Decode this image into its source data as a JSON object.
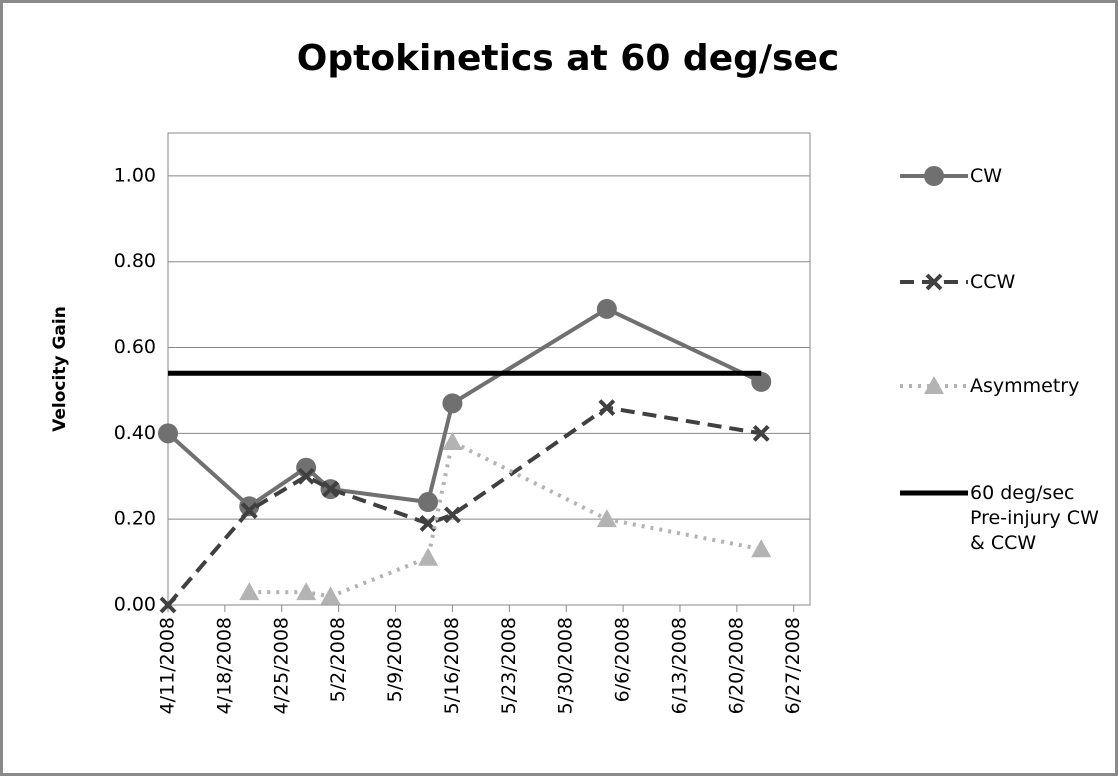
{
  "chart_data": {
    "type": "line",
    "title": "Optokinetics at 60 deg/sec",
    "y_label": "Velocity Gain",
    "x": [
      "4/11/2008",
      "4/21/2008",
      "4/28/2008",
      "5/1/2008",
      "5/13/2008",
      "5/16/2008",
      "6/4/2008",
      "6/23/2008"
    ],
    "series": [
      {
        "name": "CW",
        "color": "#707070",
        "dash": "solid",
        "marker": "circle",
        "values": [
          0.4,
          0.23,
          0.32,
          0.27,
          0.24,
          0.47,
          0.69,
          0.52
        ]
      },
      {
        "name": "CCW",
        "color": "#404040",
        "dash": "dashed",
        "marker": "x",
        "values": [
          0.0,
          0.22,
          0.3,
          0.27,
          0.19,
          0.21,
          0.46,
          0.4
        ]
      },
      {
        "name": "Asymmetry",
        "color": "#b3b3b3",
        "dash": "dotted",
        "marker": "triangle",
        "values": [
          null,
          0.03,
          0.03,
          0.02,
          0.11,
          0.38,
          0.2,
          0.13
        ]
      },
      {
        "name": "60 deg/sec Pre-injury CW & CCW",
        "color": "#000000",
        "dash": "solid",
        "marker": "none",
        "values": [
          0.54,
          0.54,
          0.54,
          0.54,
          0.54,
          0.54,
          0.54,
          0.54
        ]
      }
    ],
    "xlim": [
      "4/11/2008",
      "6/29/2008"
    ],
    "xticks": [
      "4/11/2008",
      "4/18/2008",
      "4/25/2008",
      "5/2/2008",
      "5/9/2008",
      "5/16/2008",
      "5/23/2008",
      "5/30/2008",
      "6/6/2008",
      "6/13/2008",
      "6/20/2008",
      "6/27/2008"
    ],
    "ylim": [
      0,
      1.1
    ],
    "yticks": [
      {
        "value": 0,
        "label": "0.00"
      },
      {
        "value": 0.2,
        "label": "0.20"
      },
      {
        "value": 0.4,
        "label": "0.40"
      },
      {
        "value": 0.6,
        "label": "0.60"
      },
      {
        "value": 0.8,
        "label": "0.80"
      },
      {
        "value": 1.0,
        "label": "1.00"
      }
    ],
    "grid": true,
    "legend": "right"
  }
}
